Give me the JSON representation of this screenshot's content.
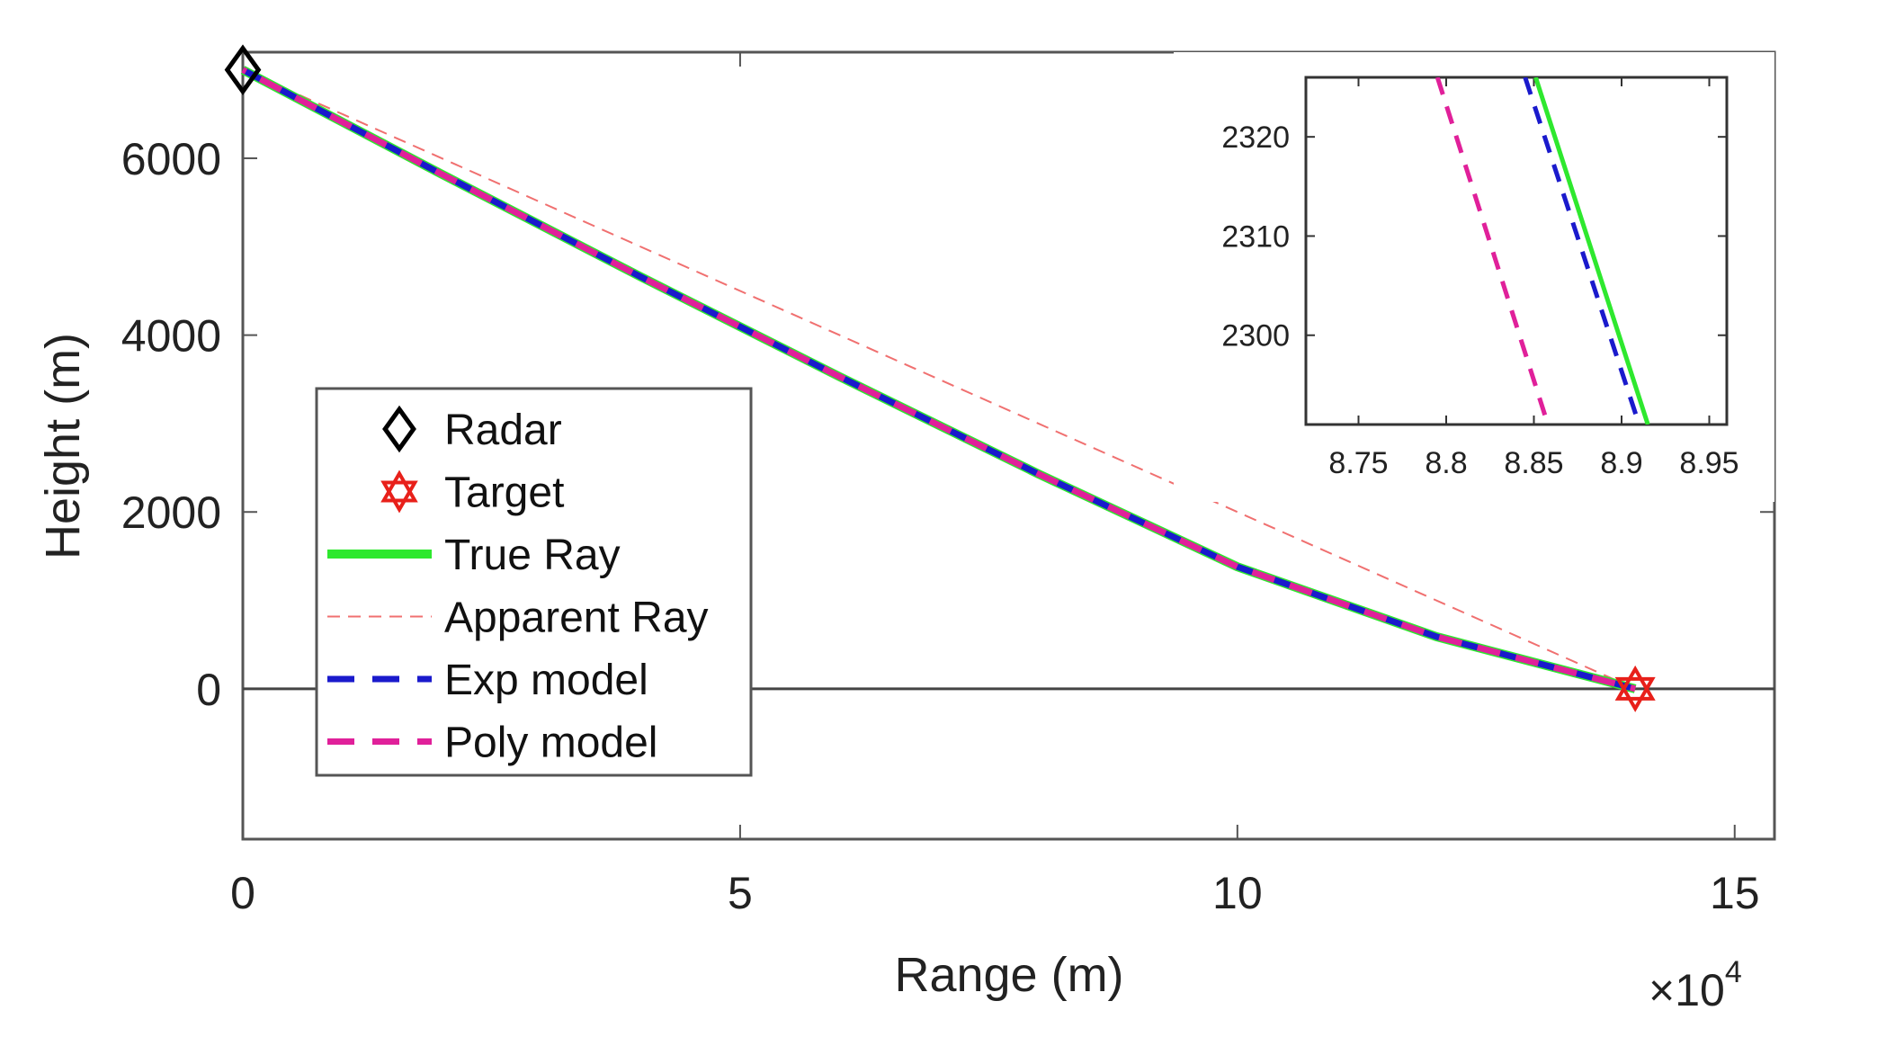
{
  "chart_data": [
    {
      "type": "line",
      "xlabel": "Range (m)",
      "ylabel": "Height (m)",
      "x_multiplier_label": "×10",
      "x_multiplier_exponent": "4",
      "xlim": [
        0,
        154000
      ],
      "ylim": [
        -1700,
        7200
      ],
      "xticks": [
        0,
        50000,
        100000,
        150000
      ],
      "xtick_labels": [
        "0",
        "5",
        "10",
        "15"
      ],
      "yticks": [
        0,
        2000,
        4000,
        6000
      ],
      "ytick_labels": [
        "0",
        "2000",
        "4000",
        "6000"
      ],
      "grid": false,
      "legend_position": "lower-left",
      "reference_line_y": 0,
      "markers": [
        {
          "name": "Radar",
          "shape": "diamond",
          "color": "#000000",
          "x": 0,
          "y": 7000
        },
        {
          "name": "Target",
          "shape": "hexagram",
          "color": "#e8201a",
          "x": 140000,
          "y": 0
        }
      ],
      "series": [
        {
          "name": "True Ray",
          "style": "solid",
          "color": "#2ee82e",
          "x": [
            0,
            20000,
            40000,
            60000,
            80000,
            100000,
            120000,
            140000
          ],
          "y": [
            7000,
            5820,
            4660,
            3530,
            2430,
            1380,
            590,
            0
          ]
        },
        {
          "name": "Apparent Ray",
          "style": "dashed-thin",
          "color": "#f07070",
          "x": [
            0,
            140000
          ],
          "y": [
            7000,
            0
          ]
        },
        {
          "name": "Exp model",
          "style": "dashed",
          "color": "#1a1acc",
          "x": [
            0,
            20000,
            40000,
            60000,
            80000,
            100000,
            120000,
            140000
          ],
          "y": [
            7000,
            5820,
            4660,
            3530,
            2430,
            1380,
            590,
            0
          ]
        },
        {
          "name": "Poly model",
          "style": "dashed",
          "color": "#e0209a",
          "x": [
            0,
            20000,
            40000,
            60000,
            80000,
            100000,
            120000,
            140000
          ],
          "y": [
            7000,
            5820,
            4660,
            3530,
            2430,
            1380,
            590,
            0
          ]
        }
      ]
    },
    {
      "type": "line",
      "role": "inset",
      "xlim": [
        87200,
        89600
      ],
      "ylim": [
        2291,
        2326
      ],
      "xticks": [
        87500,
        88000,
        88500,
        89000,
        89500
      ],
      "xtick_labels": [
        "8.75",
        "8.8",
        "8.85",
        "8.9",
        "8.95"
      ],
      "yticks": [
        2300,
        2310,
        2320
      ],
      "ytick_labels": [
        "2300",
        "2310",
        "2320"
      ],
      "series": [
        {
          "name": "True Ray",
          "color": "#2ee82e",
          "style": "solid",
          "x": [
            88510,
            89150
          ],
          "y": [
            2326,
            2291
          ]
        },
        {
          "name": "Exp model",
          "color": "#1a1acc",
          "style": "dashed",
          "x": [
            88450,
            89100
          ],
          "y": [
            2326,
            2291
          ]
        },
        {
          "name": "Poly model",
          "color": "#e0209a",
          "style": "dashed",
          "x": [
            87950,
            88580
          ],
          "y": [
            2326,
            2291
          ]
        }
      ]
    }
  ]
}
